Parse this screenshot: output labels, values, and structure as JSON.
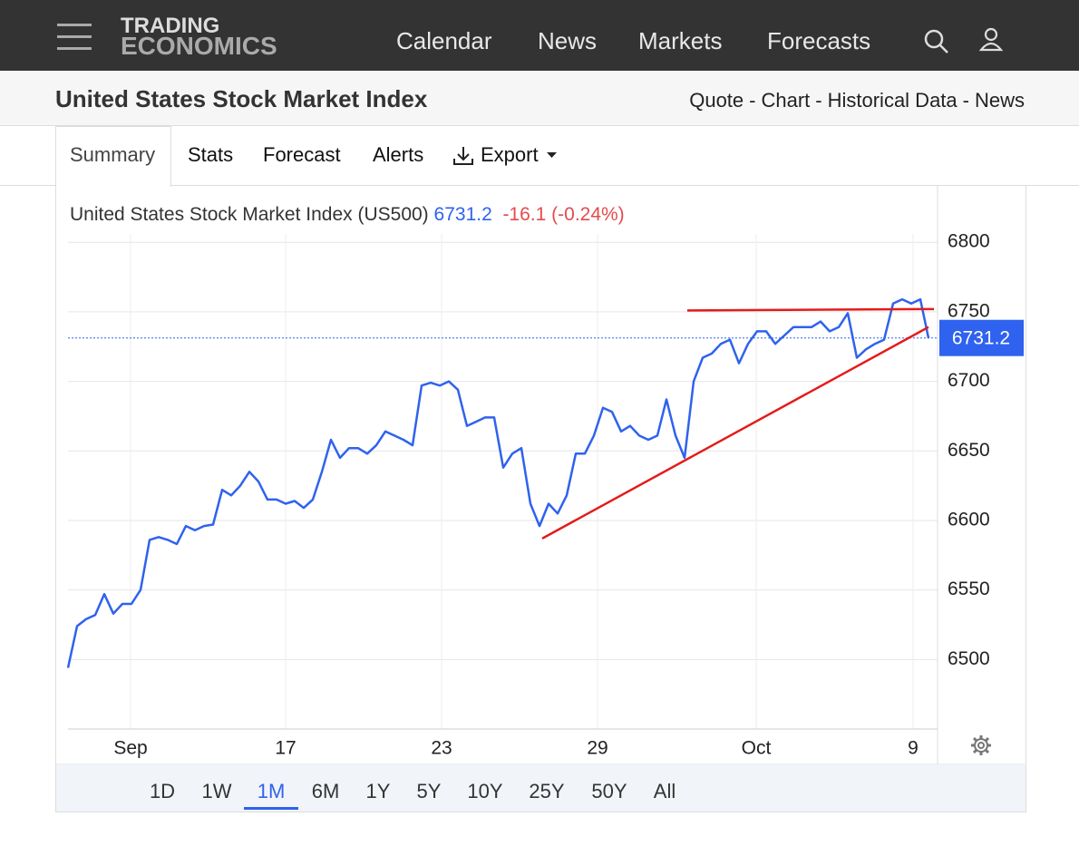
{
  "header": {
    "logo": [
      "TRADING",
      "ECONOMICS"
    ],
    "nav": [
      "Calendar",
      "News",
      "Markets",
      "Forecasts"
    ]
  },
  "subheader": {
    "title": "United States Stock Market Index",
    "links": [
      "Quote",
      "Chart",
      "Historical Data",
      "News"
    ],
    "separator": "-"
  },
  "tabs": [
    "Summary",
    "Stats",
    "Forecast",
    "Alerts",
    "Export"
  ],
  "chart_data": {
    "type": "line",
    "title": "United States Stock Market Index (US500)",
    "change": "-16.1",
    "change_pct": "(-0.24%)",
    "x": [
      0,
      1,
      2,
      3,
      4,
      5,
      6,
      7,
      8,
      9,
      10,
      11,
      12,
      13,
      14,
      15,
      16,
      17,
      18,
      19,
      20,
      21,
      22,
      23,
      24,
      25,
      26,
      27,
      28,
      29,
      30,
      31,
      32,
      33,
      34,
      35,
      36,
      37,
      38,
      39,
      40,
      41,
      42,
      43,
      44,
      45,
      46,
      47,
      48,
      49,
      50,
      51,
      52,
      53,
      54,
      55,
      56,
      57,
      58,
      59,
      60,
      61,
      62,
      63,
      64,
      65,
      66,
      67,
      68,
      69,
      70,
      71,
      72,
      73,
      74,
      75,
      76,
      77,
      78,
      79,
      80,
      81,
      82,
      83,
      84,
      85,
      86,
      87,
      88,
      89,
      90,
      91,
      92,
      93,
      94,
      94.9
    ],
    "series": [
      {
        "name": "US500",
        "color": "#2f62ee",
        "values": [
          6494,
          6524,
          6529,
          6532,
          6547,
          6533,
          6540,
          6540,
          6550,
          6586,
          6588,
          6586,
          6583,
          6596,
          6593,
          6596,
          6597,
          6622,
          6618,
          6625,
          6635,
          6628,
          6615,
          6615,
          6612,
          6614,
          6609,
          6615,
          6635,
          6658,
          6645,
          6652,
          6652,
          6648,
          6654,
          6664,
          6661,
          6658,
          6654,
          6697,
          6699,
          6697,
          6700,
          6694,
          6668,
          6671,
          6674,
          6674,
          6638,
          6648,
          6652,
          6612,
          6596,
          6612,
          6605,
          6618,
          6648,
          6648,
          6661,
          6681,
          6678,
          6664,
          6668,
          6661,
          6658,
          6661,
          6687,
          6661,
          6645,
          6700,
          6717,
          6720,
          6727,
          6730,
          6713,
          6727,
          6736,
          6736,
          6727,
          6733,
          6739,
          6739,
          6739,
          6743,
          6736,
          6739,
          6749,
          6717,
          6723,
          6727,
          6730,
          6756,
          6759,
          6756,
          6759,
          6731.2
        ]
      }
    ],
    "trendlines": [
      {
        "color": "#e41b1b",
        "x": [
          68.3,
          95.5
        ],
        "values": [
          6751,
          6752
        ]
      },
      {
        "color": "#e41b1b",
        "x": [
          52.3,
          94.9
        ],
        "values": [
          6587,
          6739
        ]
      }
    ],
    "xlim": [
      0,
      95.9
    ],
    "ylim": [
      6450,
      6806
    ],
    "xticks": [
      {
        "value": 6.9,
        "label": "Sep"
      },
      {
        "value": 24,
        "label": "17"
      },
      {
        "value": 41.2,
        "label": "23"
      },
      {
        "value": 58.4,
        "label": "29"
      },
      {
        "value": 75.9,
        "label": "Oct"
      },
      {
        "value": 93.2,
        "label": "9"
      }
    ],
    "yticks": [
      6500,
      6550,
      6600,
      6650,
      6700,
      6750,
      6800
    ],
    "grid": true
  },
  "ranges": [
    "1D",
    "1W",
    "1M",
    "6M",
    "1Y",
    "5Y",
    "10Y",
    "25Y",
    "50Y",
    "All"
  ],
  "active_range": "1M"
}
